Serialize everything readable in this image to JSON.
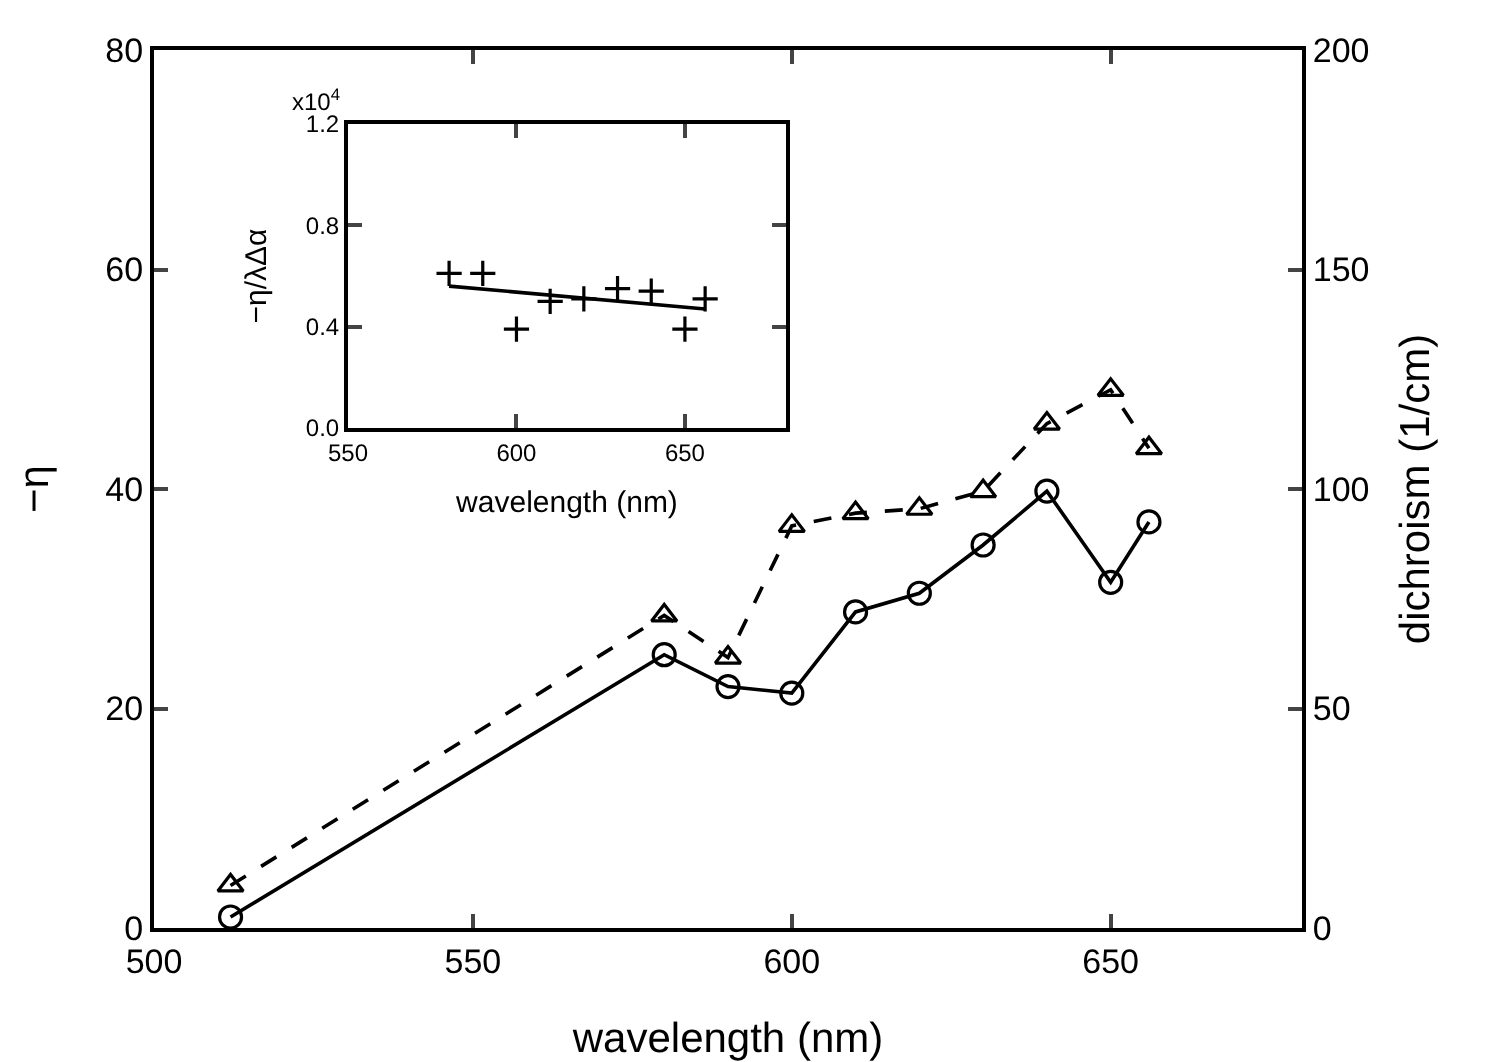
{
  "chart_data": [
    {
      "type": "line",
      "xlabel": "wavelength (nm)",
      "ylabel": "−η",
      "y2label": "dichroism (1/cm)",
      "xlim": [
        500,
        680
      ],
      "xticks": [
        500,
        550,
        600,
        650
      ],
      "ylim": [
        0,
        80
      ],
      "yticks": [
        0,
        20,
        40,
        60,
        80
      ],
      "y2lim": [
        0,
        200
      ],
      "y2ticks": [
        0,
        50,
        100,
        150,
        200
      ],
      "grid": false,
      "series": [
        {
          "color": "#000000",
          "marker": "circle",
          "line_style": "solid",
          "x": [
            512,
            580,
            590,
            600,
            610,
            620,
            630,
            640,
            650,
            656
          ],
          "values": [
            1.0,
            24.9,
            22.0,
            21.4,
            28.8,
            30.5,
            34.9,
            39.8,
            31.5,
            37.0
          ]
        },
        {
          "color": "#000000",
          "marker": "triangle",
          "line_style": "dashed",
          "axis": "y2",
          "x": [
            512,
            580,
            590,
            600,
            610,
            620,
            630,
            640,
            650,
            656
          ],
          "values": [
            9.7,
            71.2,
            61.6,
            91.6,
            94.5,
            95.5,
            99.5,
            114.9,
            122.6,
            109.3
          ]
        }
      ]
    },
    {
      "type": "scatter",
      "xlabel": "wavelength (nm)",
      "ylabel": "−η/λΔα",
      "xlim": [
        550,
        680
      ],
      "xticks": [
        550,
        600,
        650
      ],
      "ylim": [
        0,
        1.2
      ],
      "yticks": [
        {
          "value": 0,
          "label": "0.0"
        },
        0.4,
        0.8,
        1.2
      ],
      "grid": false,
      "annotations": [
        "x10$^{4}$"
      ],
      "series": [
        {
          "color": "#000000",
          "marker": "cross",
          "x": [
            580,
            590,
            600,
            610,
            620,
            630,
            640,
            650,
            656
          ],
          "values": [
            0.61,
            0.61,
            0.39,
            0.5,
            0.51,
            0.55,
            0.54,
            0.39,
            0.51
          ]
        },
        {
          "type": "line",
          "color": "#000000",
          "marker": "none",
          "line_style": "solid",
          "x": [
            580,
            656
          ],
          "values": [
            0.56,
            0.47
          ]
        }
      ]
    }
  ]
}
